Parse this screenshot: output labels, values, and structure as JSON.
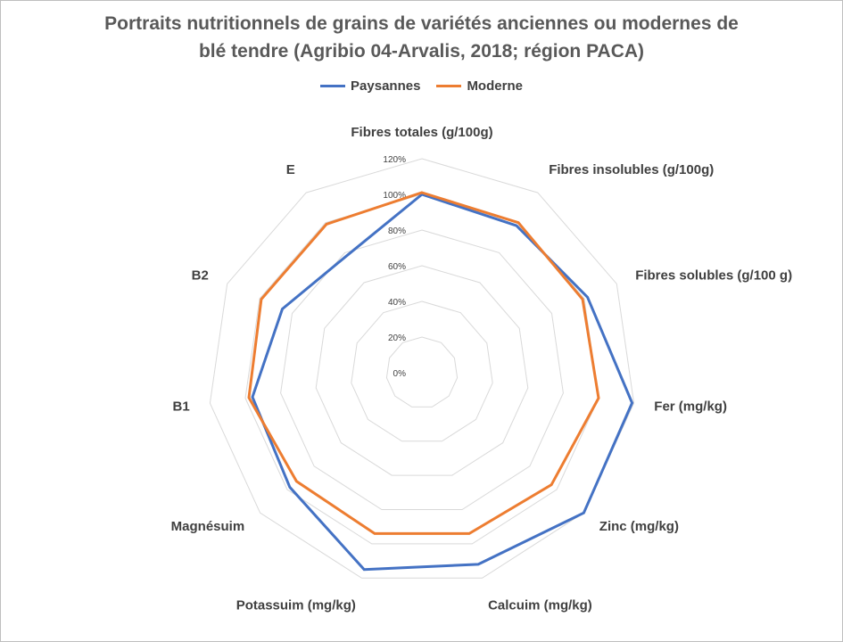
{
  "title_lines": [
    "Portraits nutritionnels de grains de variétés anciennes ou modernes de",
    "blé tendre (Agribio 04-Arvalis, 2018; région PACA)"
  ],
  "colors": {
    "paysannes": "#4472c4",
    "moderne": "#ed7d31",
    "grid": "#d9d9d9"
  },
  "chart_data": {
    "type": "radar",
    "title": "Portraits nutritionnels de grains de variétés anciennes ou modernes de blé tendre (Agribio 04-Arvalis, 2018; région PACA)",
    "axes": [
      "Fibres totales (g/100g)",
      "Fibres insolubles (g/100g)",
      "Fibres solubles (g/100 g)",
      "Fer (mg/kg)",
      "Zinc (mg/kg)",
      "Calcuim (mg/kg)",
      "Potassuim (mg/kg)",
      "Magnésuim",
      "B1",
      "B2",
      "E"
    ],
    "ticks": [
      "0%",
      "20%",
      "40%",
      "60%",
      "80%",
      "100%",
      "120%"
    ],
    "range": [
      0,
      120
    ],
    "grid": true,
    "legend_position": "top",
    "series": [
      {
        "name": "Paysannes",
        "values": [
          100,
          98,
          102,
          119,
          120,
          112,
          115,
          98,
          96,
          86,
          78
        ]
      },
      {
        "name": "Moderne",
        "values": [
          101,
          100,
          99,
          100,
          96,
          94,
          94,
          93,
          98,
          99,
          99
        ]
      }
    ]
  }
}
